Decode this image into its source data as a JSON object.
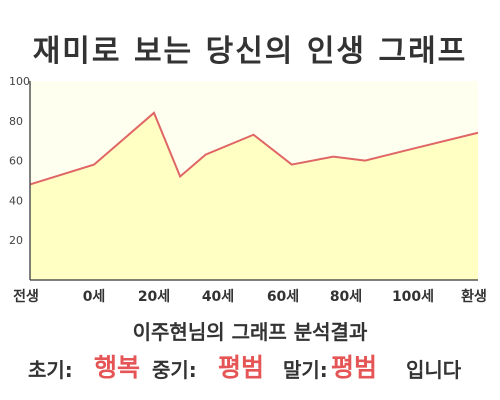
{
  "title": "재미로 보는 당신의 인생 그래프",
  "subtitle": "이주현님의 그래프 분석결과",
  "results": {
    "early_label": "초기:",
    "early_value": "행복",
    "mid_label": "중기:",
    "mid_value": "평범",
    "late_label": "말기:",
    "late_value": "평범",
    "suffix": "입니다"
  },
  "colors": {
    "line": "#e06666",
    "fill": "#ffffc4",
    "plot_bg": "#fffff0",
    "highlight": "#e65555"
  },
  "chart_data": {
    "type": "area",
    "title": "재미로 보는 당신의 인생 그래프",
    "xlabel": "",
    "ylabel": "",
    "ylim": [
      0,
      100
    ],
    "yticks": [
      20,
      40,
      60,
      80,
      100
    ],
    "xticks": [
      "전생",
      "0세",
      "20세",
      "40세",
      "60세",
      "80세",
      "100세",
      "환생"
    ],
    "grid": false,
    "series": [
      {
        "x": [
          "전생",
          "0세",
          "20세",
          "27세",
          "35세",
          "50세",
          "62세",
          "75세",
          "85세",
          "100세",
          "환생"
        ],
        "values": [
          48,
          58,
          84,
          52,
          63,
          73,
          58,
          62,
          60,
          66,
          74
        ]
      }
    ]
  }
}
